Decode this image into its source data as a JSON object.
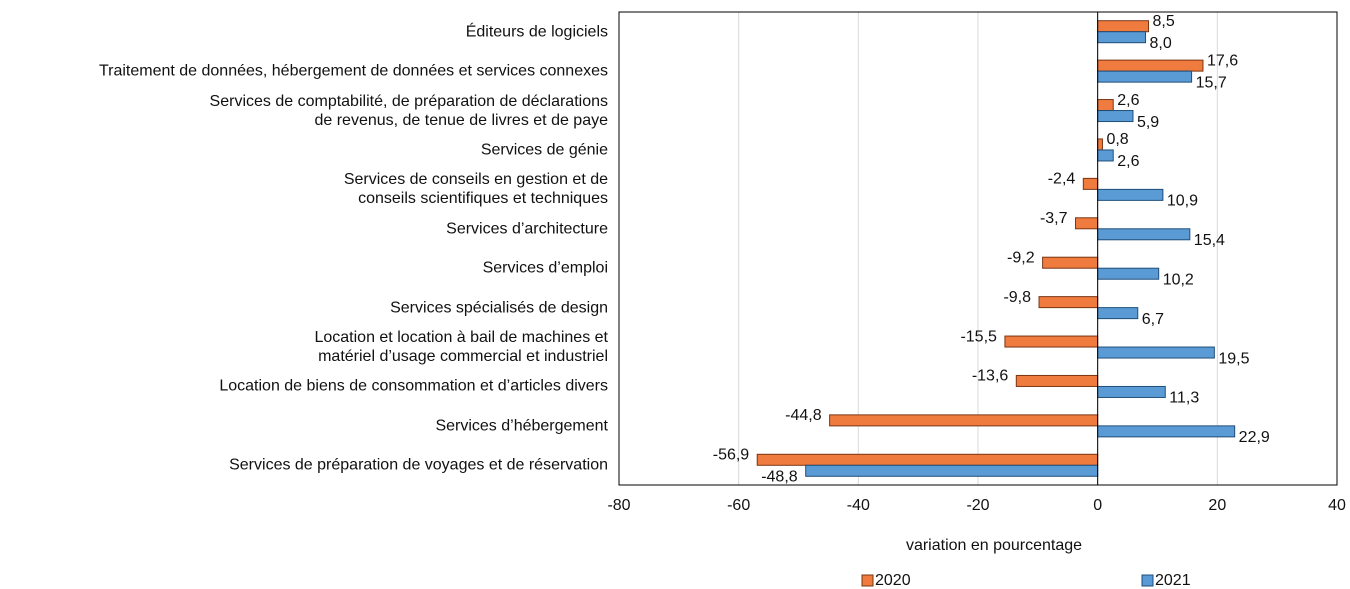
{
  "chart_data": {
    "type": "barh",
    "xlabel": "variation en pourcentage",
    "categories": [
      "Éditeurs de logiciels",
      "Traitement de données, hébergement de données et services connexes",
      "Services de comptabilité, de préparation de déclarations\nde revenus, de tenue de livres et de paye",
      "Services de génie",
      "Services de conseils en gestion et de\nconseils scientifiques et techniques",
      "Services d’architecture",
      "Services d’emploi",
      "Services spécialisés de design",
      "Location et location à bail de machines et\nmatériel d’usage commercial et industriel",
      "Location de biens de consommation et d’articles divers",
      "Services d’hébergement",
      "Services de préparation de voyages et de réservation"
    ],
    "series": [
      {
        "name": "2020",
        "color": "#f07b3f",
        "values": [
          8.5,
          17.6,
          2.6,
          0.8,
          -2.4,
          -3.7,
          -9.2,
          -9.8,
          -15.5,
          -13.6,
          -44.8,
          -56.9
        ],
        "value_labels": [
          "8,5",
          "17,6",
          "2,6",
          "0,8",
          "-2,4",
          "-3,7",
          "-9,2",
          "-9,8",
          "-15,5",
          "-13,6",
          "-44,8",
          "-56,9"
        ]
      },
      {
        "name": "2021",
        "color": "#5b9bd5",
        "values": [
          8.0,
          15.7,
          5.9,
          2.6,
          10.9,
          15.4,
          10.2,
          6.7,
          19.5,
          11.3,
          22.9,
          -48.8
        ],
        "value_labels": [
          "8,0",
          "15,7",
          "5,9",
          "2,6",
          "10,9",
          "15,4",
          "10,2",
          "6,7",
          "19,5",
          "11,3",
          "22,9",
          "-48,8"
        ]
      }
    ],
    "xlim": [
      -80,
      40
    ],
    "xticks": [
      -80,
      -60,
      -40,
      -20,
      0,
      20,
      40
    ],
    "grid": true
  }
}
